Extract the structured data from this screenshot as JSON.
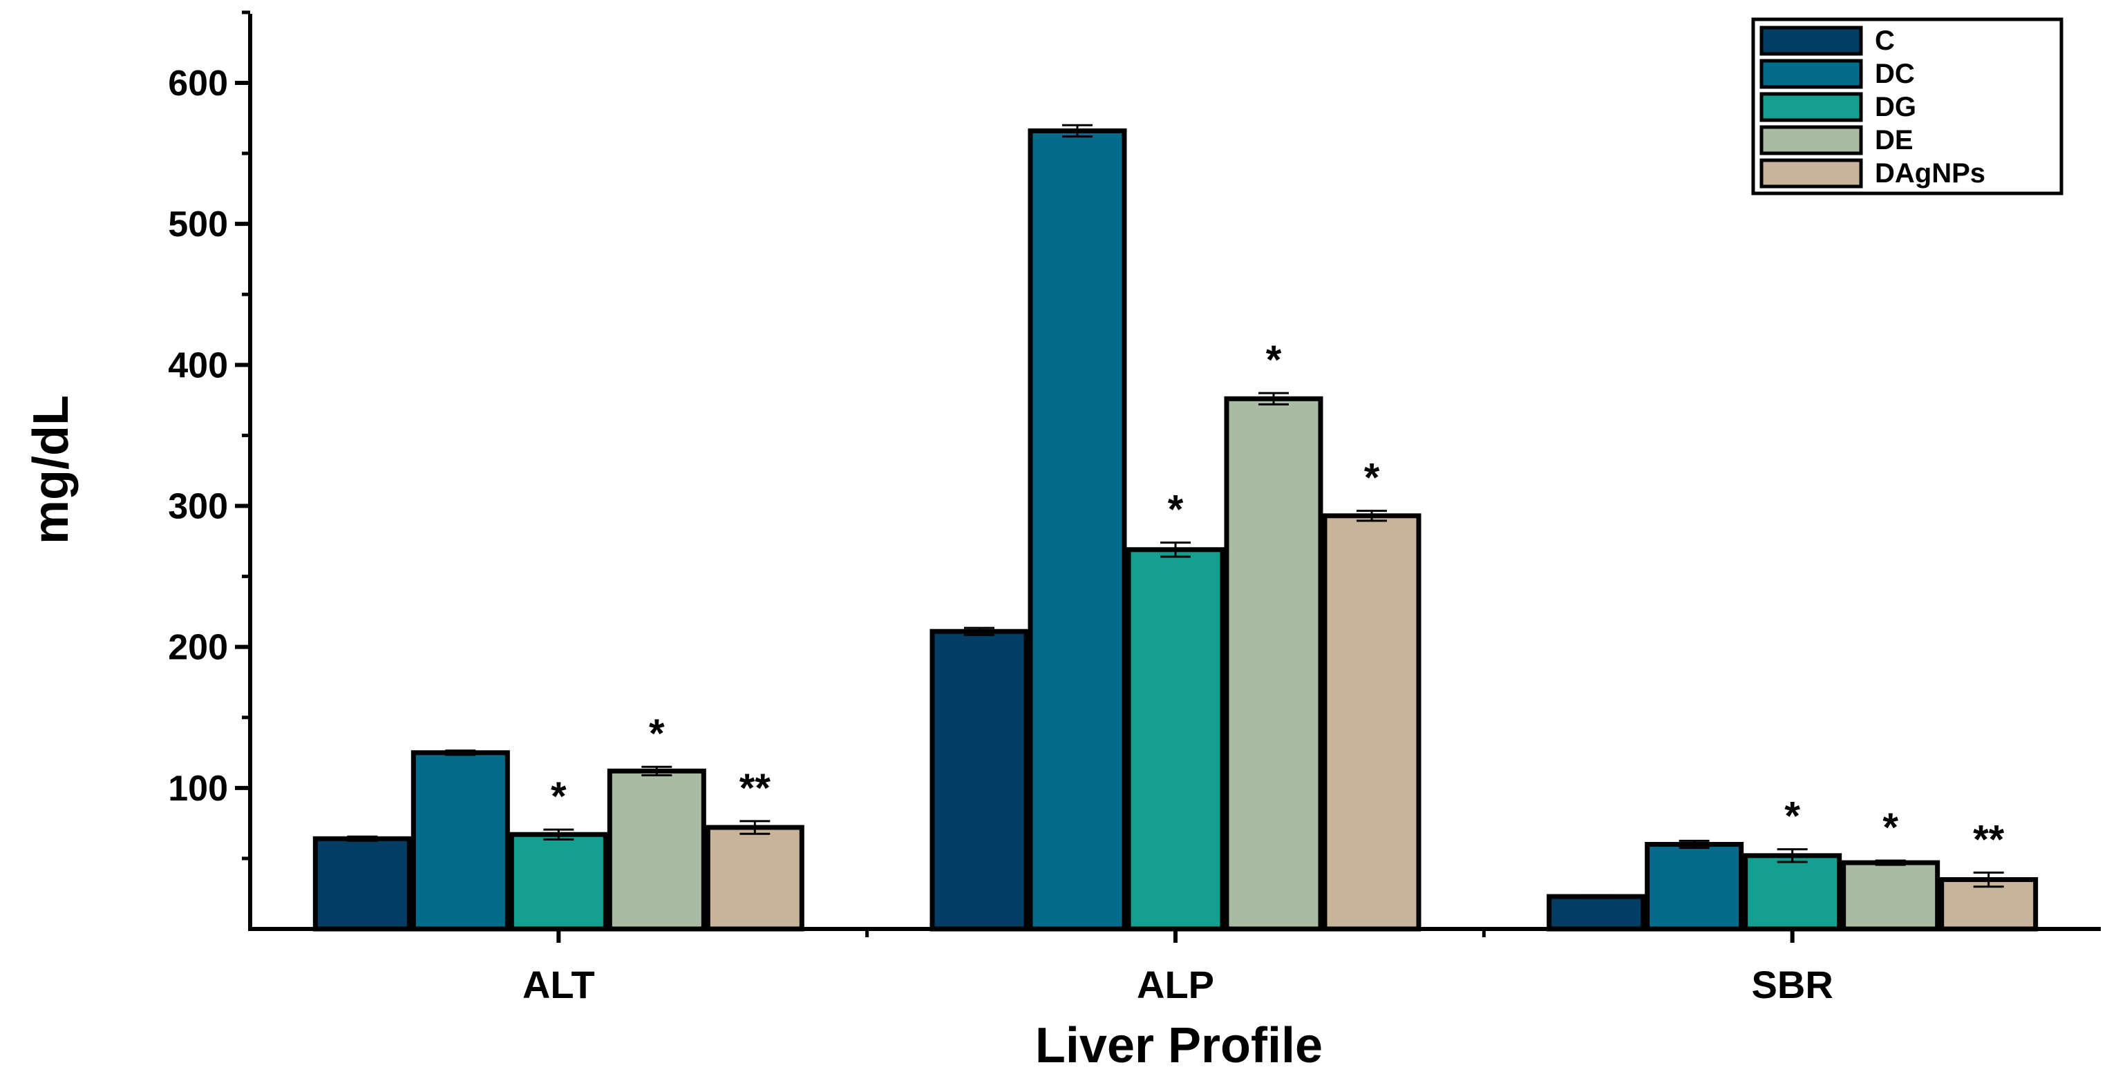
{
  "chart_data": {
    "type": "bar",
    "categories": [
      "ALT",
      "ALP",
      "SBR"
    ],
    "series": [
      {
        "name": "C",
        "color": "#003f63",
        "values": [
          64,
          211,
          23
        ],
        "errors": [
          1.5,
          2.5,
          1.0
        ]
      },
      {
        "name": "DC",
        "color": "#036c8c",
        "values": [
          125,
          566,
          60
        ],
        "errors": [
          1.5,
          4.0,
          2.5
        ]
      },
      {
        "name": "DG",
        "color": "#14a090",
        "values": [
          67,
          269,
          52
        ],
        "errors": [
          3.5,
          5.0,
          4.5
        ]
      },
      {
        "name": "DE",
        "color": "#a9bba3",
        "values": [
          112,
          376,
          47
        ],
        "errors": [
          3.0,
          4.0,
          1.5
        ]
      },
      {
        "name": "DAgNPs",
        "color": "#c8b49a",
        "values": [
          72,
          293,
          35
        ],
        "errors": [
          4.5,
          3.5,
          5.0
        ]
      }
    ],
    "significance": [
      {
        "category": "ALT",
        "series": "DG",
        "label": "*"
      },
      {
        "category": "ALT",
        "series": "DE",
        "label": "*"
      },
      {
        "category": "ALT",
        "series": "DAgNPs",
        "label": "**"
      },
      {
        "category": "ALP",
        "series": "DG",
        "label": "*"
      },
      {
        "category": "ALP",
        "series": "DE",
        "label": "*"
      },
      {
        "category": "ALP",
        "series": "DAgNPs",
        "label": "*"
      },
      {
        "category": "SBR",
        "series": "DG",
        "label": "*"
      },
      {
        "category": "SBR",
        "series": "DE",
        "label": "*"
      },
      {
        "category": "SBR",
        "series": "DAgNPs",
        "label": "**"
      }
    ],
    "yticks": [
      100,
      200,
      300,
      400,
      500,
      600
    ],
    "ylim": [
      0,
      650
    ],
    "xlabel": "Liver Profile",
    "ylabel": "mg/dL",
    "grid": false,
    "legend_position": "top-right"
  }
}
